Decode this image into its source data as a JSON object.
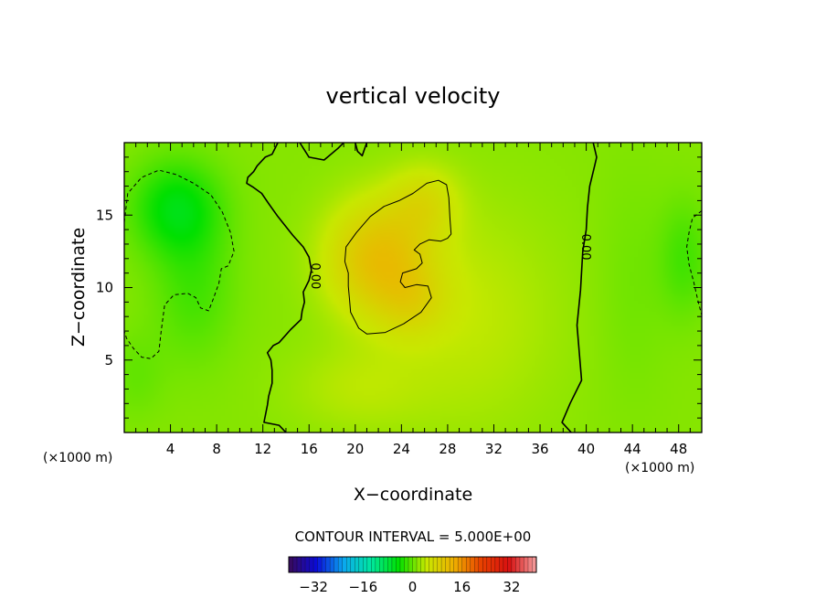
{
  "chart_data": {
    "type": "heatmap",
    "subtype": "filled-contour",
    "title": "vertical velocity",
    "xlabel": "X−coordinate",
    "ylabel": "Z−coordinate",
    "x_unit_left": "(×1000 m)",
    "x_unit_right": "(×1000 m)",
    "xlim": [
      0,
      50
    ],
    "ylim": [
      0,
      20
    ],
    "x_ticks": [
      4,
      8,
      12,
      16,
      20,
      24,
      28,
      32,
      36,
      40,
      44,
      48
    ],
    "y_ticks": [
      5,
      10,
      15
    ],
    "contour_interval_text": "CONTOUR INTERVAL = 5.000E+00",
    "contour_levels": [
      -5,
      0,
      5
    ],
    "contour_label": "0.00",
    "colorbar": {
      "min": -40,
      "max": 40,
      "ticks": [
        -32,
        -16,
        0,
        16,
        32
      ],
      "tick_labels": [
        "−32",
        "−16",
        "0",
        "16",
        "32"
      ],
      "colors": [
        "#3a0a5a",
        "#0a0ad8",
        "#0aa8f0",
        "#00e8a0",
        "#00e000",
        "#c8e800",
        "#f0b000",
        "#e84000",
        "#d81010",
        "#f4a0a0"
      ]
    },
    "field_blobs": [
      {
        "x": 4.5,
        "y": 15.5,
        "value": -6.5,
        "sx": 3.8,
        "sy": 3.2
      },
      {
        "x": 6.0,
        "y": 10.0,
        "value": -3,
        "sx": 3.5,
        "sy": 5
      },
      {
        "x": 1.0,
        "y": 4.0,
        "value": -1.5,
        "sx": 2.5,
        "sy": 3
      },
      {
        "x": 48.5,
        "y": 12.0,
        "value": -3,
        "sx": 2.2,
        "sy": 4
      },
      {
        "x": 22.0,
        "y": 12.0,
        "value": 9,
        "sx": 4.5,
        "sy": 4
      },
      {
        "x": 26.0,
        "y": 16.0,
        "value": 4,
        "sx": 3,
        "sy": 2.5
      },
      {
        "x": 25.0,
        "y": 9.0,
        "value": 3,
        "sx": 3,
        "sy": 2.5
      },
      {
        "x": 30.0,
        "y": 8.0,
        "value": 2.5,
        "sx": 8,
        "sy": 8
      },
      {
        "x": 20.0,
        "y": 3.0,
        "value": 2,
        "sx": 6,
        "sy": 3
      },
      {
        "x": 44.0,
        "y": 10.0,
        "value": -1.0,
        "sx": 3,
        "sy": 8
      }
    ],
    "contours": [
      {
        "level": -5,
        "style": "dashed",
        "points": [
          [
            0,
            14.5
          ],
          [
            0.3,
            16.5
          ],
          [
            1.5,
            17.6
          ],
          [
            3,
            18.1
          ],
          [
            4.5,
            17.8
          ],
          [
            6,
            17.2
          ],
          [
            7.5,
            16.4
          ],
          [
            8.5,
            15.2
          ],
          [
            9.2,
            13.8
          ],
          [
            9.5,
            12.5
          ],
          [
            9.0,
            11.5
          ],
          [
            8.4,
            11.3
          ],
          [
            8.2,
            10.3
          ],
          [
            7.7,
            9.2
          ],
          [
            7.3,
            8.4
          ],
          [
            6.6,
            8.6
          ],
          [
            6.2,
            9.3
          ],
          [
            5.5,
            9.6
          ],
          [
            4.3,
            9.5
          ],
          [
            3.5,
            8.8
          ],
          [
            3.2,
            7.0
          ],
          [
            3.0,
            5.6
          ],
          [
            2.3,
            5.1
          ],
          [
            1.5,
            5.2
          ],
          [
            0.8,
            5.8
          ],
          [
            0.2,
            6.5
          ],
          [
            0,
            7.0
          ]
        ]
      },
      {
        "level": -5,
        "style": "dashed",
        "points": [
          [
            50,
            15.3
          ],
          [
            49.2,
            14.8
          ],
          [
            48.9,
            13.8
          ],
          [
            48.7,
            12.8
          ],
          [
            48.9,
            11.6
          ],
          [
            49.3,
            10.4
          ],
          [
            49.7,
            9.0
          ],
          [
            50,
            8.1
          ]
        ]
      },
      {
        "level": 0,
        "style": "solid",
        "label_at": [
          16.5,
          10.8
        ],
        "points": [
          [
            14,
            0
          ],
          [
            13.4,
            0.5
          ],
          [
            12.1,
            0.7
          ],
          [
            12.4,
            1.9
          ],
          [
            12.5,
            2.5
          ],
          [
            12.8,
            3.4
          ],
          [
            12.8,
            4.3
          ],
          [
            12.7,
            5.0
          ],
          [
            12.4,
            5.5
          ],
          [
            12.9,
            6.0
          ],
          [
            13.4,
            6.2
          ],
          [
            14.4,
            7.1
          ],
          [
            15.3,
            7.8
          ],
          [
            15.4,
            8.4
          ],
          [
            15.6,
            9.0
          ],
          [
            15.5,
            9.7
          ],
          [
            16.0,
            10.5
          ],
          [
            16.2,
            11.2
          ],
          [
            16.0,
            12.1
          ],
          [
            15.5,
            12.8
          ],
          [
            14.6,
            13.6
          ],
          [
            13.3,
            14.9
          ],
          [
            12.5,
            15.8
          ],
          [
            11.9,
            16.5
          ],
          [
            11.2,
            16.9
          ],
          [
            10.6,
            17.2
          ],
          [
            10.7,
            17.6
          ],
          [
            11.2,
            18.0
          ],
          [
            11.5,
            18.4
          ],
          [
            12.2,
            19.0
          ],
          [
            12.8,
            19.2
          ],
          [
            13.3,
            20.0
          ]
        ]
      },
      {
        "level": 0,
        "style": "solid",
        "points": [
          [
            15.2,
            20
          ],
          [
            16.0,
            19.0
          ],
          [
            17.3,
            18.8
          ],
          [
            18.5,
            19.6
          ],
          [
            19.0,
            20
          ]
        ]
      },
      {
        "level": 0,
        "style": "solid",
        "points": [
          [
            20.0,
            20
          ],
          [
            20.2,
            19.4
          ],
          [
            20.6,
            19.1
          ],
          [
            21.0,
            20
          ]
        ]
      },
      {
        "level": 0,
        "style": "solid",
        "label_at": [
          39.9,
          12.8
        ],
        "points": [
          [
            38.7,
            0
          ],
          [
            37.9,
            0.7
          ],
          [
            38.6,
            2.0
          ],
          [
            39.6,
            3.6
          ],
          [
            39.4,
            5.5
          ],
          [
            39.2,
            7.4
          ],
          [
            39.5,
            9.8
          ],
          [
            39.7,
            12.5
          ],
          [
            40.0,
            14.0
          ],
          [
            40.1,
            15.5
          ],
          [
            40.3,
            17.0
          ],
          [
            40.7,
            18.3
          ],
          [
            40.9,
            19.0
          ],
          [
            40.6,
            20
          ]
        ]
      },
      {
        "level": 5,
        "style": "solid",
        "closed": true,
        "points": [
          [
            20.3,
            7.2
          ],
          [
            21.0,
            6.8
          ],
          [
            22.6,
            6.9
          ],
          [
            24.2,
            7.5
          ],
          [
            25.7,
            8.3
          ],
          [
            26.6,
            9.3
          ],
          [
            26.3,
            10.1
          ],
          [
            25.3,
            10.2
          ],
          [
            24.3,
            10.0
          ],
          [
            23.9,
            10.4
          ],
          [
            24.1,
            11.0
          ],
          [
            25.3,
            11.3
          ],
          [
            25.8,
            11.7
          ],
          [
            25.6,
            12.3
          ],
          [
            25.1,
            12.6
          ],
          [
            25.6,
            13.0
          ],
          [
            26.4,
            13.3
          ],
          [
            27.4,
            13.2
          ],
          [
            28.0,
            13.4
          ],
          [
            28.3,
            13.7
          ],
          [
            28.2,
            14.8
          ],
          [
            28.1,
            16.2
          ],
          [
            27.9,
            17.1
          ],
          [
            27.2,
            17.4
          ],
          [
            26.2,
            17.2
          ],
          [
            25.0,
            16.5
          ],
          [
            23.8,
            16.0
          ],
          [
            22.5,
            15.6
          ],
          [
            21.3,
            14.9
          ],
          [
            20.1,
            13.8
          ],
          [
            19.2,
            12.8
          ],
          [
            19.1,
            11.8
          ],
          [
            19.4,
            11.0
          ],
          [
            19.4,
            10.1
          ],
          [
            19.5,
            9.2
          ],
          [
            19.6,
            8.3
          ]
        ]
      }
    ]
  }
}
